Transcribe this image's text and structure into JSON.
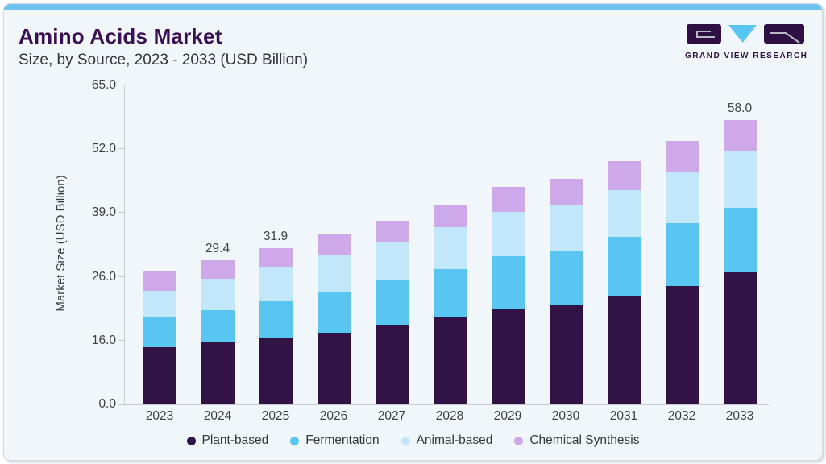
{
  "header": {
    "title": "Amino Acids Market",
    "subtitle": "Size, by Source, 2023 - 2033 (USD Billion)",
    "brand": "GRAND VIEW RESEARCH"
  },
  "colors": {
    "card_background": "#f0f6fa",
    "top_accent": "#6fc3ee",
    "title_purple": "#3a1055",
    "brand_purple": "#2e1045",
    "brand_blue": "#57c7f1",
    "axis_line": "#c7cdd4",
    "text_dark": "#3d4147"
  },
  "chart_data": {
    "type": "bar",
    "stacked": true,
    "title": "Amino Acids Market Size, by Source, 2023 - 2033 (USD Billion)",
    "categories": [
      "2023",
      "2024",
      "2025",
      "2026",
      "2027",
      "2028",
      "2029",
      "2030",
      "2031",
      "2032",
      "2033"
    ],
    "series": [
      {
        "name": "Plant-based",
        "color": "#321345",
        "values": [
          14.4,
          15.5,
          16.5,
          17.3,
          18.4,
          19.6,
          21.0,
          21.7,
          23.0,
          24.6,
          26.9
        ]
      },
      {
        "name": "Fermentation",
        "color": "#59c6f2",
        "values": [
          5.2,
          5.3,
          5.7,
          6.2,
          7.0,
          8.0,
          9.2,
          9.7,
          11.1,
          12.3,
          13.1
        ]
      },
      {
        "name": "Animal-based",
        "color": "#c3e7fa",
        "values": [
          4.2,
          4.9,
          5.9,
          6.9,
          7.8,
          8.5,
          9.1,
          9.2,
          9.6,
          10.6,
          11.7
        ]
      },
      {
        "name": "Chemical Synthesis",
        "color": "#cda9e9",
        "values": [
          3.4,
          3.7,
          3.8,
          4.2,
          4.2,
          4.6,
          5.1,
          5.4,
          5.9,
          6.1,
          6.3
        ]
      }
    ],
    "totals": [
      27.2,
      29.4,
      31.9,
      34.6,
      37.4,
      40.7,
      44.4,
      46.0,
      49.6,
      53.6,
      58.0
    ],
    "annotations": [
      {
        "category": "2024",
        "text": "29.4"
      },
      {
        "category": "2025",
        "text": "31.9"
      },
      {
        "category": "2033",
        "text": "58.0"
      }
    ],
    "xlabel": "",
    "ylabel": "Market Size (USD Billion)",
    "y_ticks": [
      0,
      16,
      26,
      39,
      52,
      65
    ],
    "y_tick_labels": [
      "0.0",
      "16.0",
      "26.0",
      "39.0",
      "52.0",
      "65.0"
    ],
    "ylim": [
      0,
      65
    ],
    "grid": false,
    "legend_position": "bottom"
  }
}
